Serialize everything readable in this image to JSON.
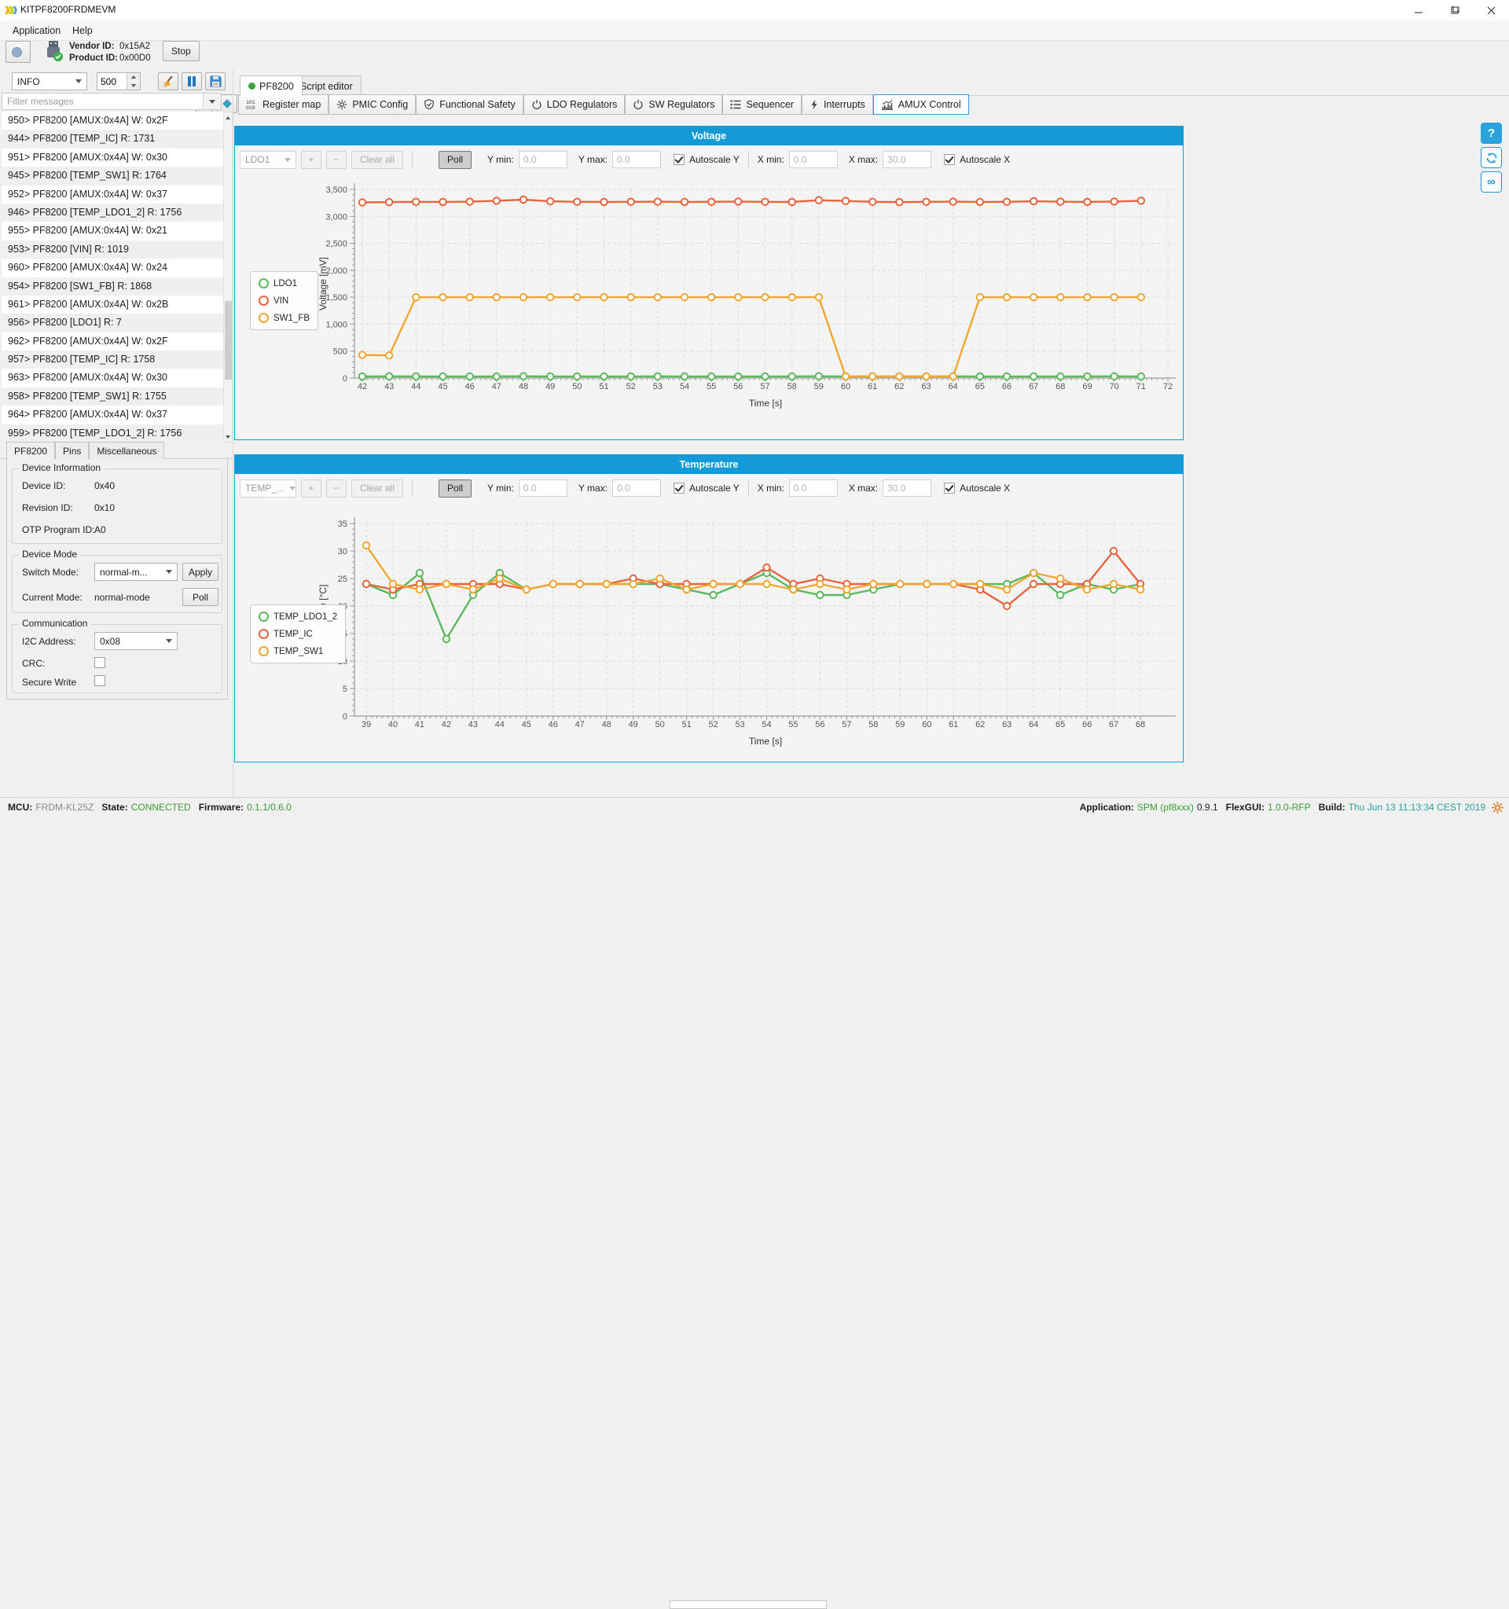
{
  "window": {
    "title": "KITPF8200FRDMEVM"
  },
  "menu": {
    "items": [
      "Application",
      "Help"
    ]
  },
  "toolbar": {
    "vendor_id_label": "Vendor ID:",
    "vendor_id_value": "0x15A2",
    "product_id_label": "Product ID:",
    "product_id_value": "0x00D0",
    "stop_label": "Stop",
    "log_level_value": "INFO",
    "log_buffer_value": "500"
  },
  "filter": {
    "placeholder": "Filter messages"
  },
  "log_rows": [
    "950>  PF8200 [AMUX:0x4A] W: 0x2F",
    "944>  PF8200 [TEMP_IC] R: 1731",
    "951>  PF8200 [AMUX:0x4A] W: 0x30",
    "945>  PF8200 [TEMP_SW1] R: 1764",
    "952>  PF8200 [AMUX:0x4A] W: 0x37",
    "946>  PF8200 [TEMP_LDO1_2] R: 1756",
    "955>  PF8200 [AMUX:0x4A] W: 0x21",
    "953>  PF8200 [VIN] R: 1019",
    "960>  PF8200 [AMUX:0x4A] W: 0x24",
    "954>  PF8200 [SW1_FB] R: 1868",
    "961>  PF8200 [AMUX:0x4A] W: 0x2B",
    "956>  PF8200 [LDO1] R: 7",
    "962>  PF8200 [AMUX:0x4A] W: 0x2F",
    "957>  PF8200 [TEMP_IC] R: 1758",
    "963>  PF8200 [AMUX:0x4A] W: 0x30",
    "958>  PF8200 [TEMP_SW1] R: 1755",
    "964>  PF8200 [AMUX:0x4A] W: 0x37",
    "959>  PF8200 [TEMP_LDO1_2] R: 1756"
  ],
  "main_tabs": [
    {
      "label": "PF8200",
      "selected": true
    },
    {
      "label": "Script editor",
      "selected": false
    }
  ],
  "sub_tabs": [
    {
      "label": "Register map",
      "icon": "register-map-icon",
      "selected": false
    },
    {
      "label": "PMIC Config",
      "icon": "gear-icon",
      "selected": false
    },
    {
      "label": "Functional Safety",
      "icon": "shield-icon",
      "selected": false
    },
    {
      "label": "LDO Regulators",
      "icon": "power-icon",
      "selected": false
    },
    {
      "label": "SW Regulators",
      "icon": "power-icon",
      "selected": false
    },
    {
      "label": "Sequencer",
      "icon": "list-icon",
      "selected": false
    },
    {
      "label": "Interrupts",
      "icon": "lightning-icon",
      "selected": false
    },
    {
      "label": "AMUX Control",
      "icon": "chart-icon",
      "selected": true
    }
  ],
  "left_tabs": [
    {
      "label": "PF8200",
      "selected": true
    },
    {
      "label": "Pins",
      "selected": false
    },
    {
      "label": "Miscellaneous",
      "selected": false
    }
  ],
  "device_panel": {
    "device_info_title": "Device Information",
    "device_info_rows": [
      {
        "label": "Device ID:",
        "value": "0x40"
      },
      {
        "label": "Revision ID:",
        "value": "0x10"
      },
      {
        "label": "OTP Program ID:",
        "value": "A0"
      }
    ],
    "device_mode_title": "Device Mode",
    "switch_mode_label": "Switch Mode:",
    "switch_mode_value": "normal-m...",
    "apply_label": "Apply",
    "current_mode_label": "Current Mode:",
    "current_mode_value": "normal-mode",
    "poll_label": "Poll",
    "communication_title": "Communication",
    "i2c_address_label": "I2C Address:",
    "i2c_address_value": "0x08",
    "crc_label": "CRC:",
    "secure_write_label": "Secure Write"
  },
  "chart_controls": {
    "voltage_series_select": "LDO1",
    "temperature_series_select": "TEMP_...",
    "plus_label": "+",
    "minus_label": "−",
    "clear_label": "Clear all",
    "poll_label": "Poll",
    "y_min_label": "Y min:",
    "y_min_value": "0.0",
    "y_max_label": "Y max:",
    "y_max_value": "0.0",
    "autoscale_y_label": "Autoscale Y",
    "x_min_label": "X min:",
    "x_min_value": "0.0",
    "x_max_label": "X max:",
    "x_max_value": "30.0",
    "autoscale_x_label": "Autoscale X"
  },
  "chart_data": [
    {
      "id": "voltage",
      "type": "line",
      "title": "Voltage",
      "xlabel": "Time [s]",
      "ylabel": "Voltage [mV]",
      "xlim": [
        42,
        72
      ],
      "ylim": [
        0,
        3500
      ],
      "y_major": 500,
      "comma_y_labels": true,
      "grid": true,
      "legend_position": "left",
      "x": [
        42,
        43,
        44,
        45,
        46,
        47,
        48,
        49,
        50,
        51,
        52,
        53,
        54,
        55,
        56,
        57,
        58,
        59,
        60,
        61,
        62,
        63,
        64,
        65,
        66,
        67,
        68,
        69,
        70,
        71
      ],
      "series": [
        {
          "name": "LDO1",
          "color": "#5cb85c",
          "values": [
            30,
            32,
            30,
            31,
            30,
            30,
            33,
            30,
            31,
            30,
            30,
            32,
            30,
            30,
            31,
            30,
            30,
            34,
            30,
            30,
            31,
            30,
            32,
            30,
            30,
            31,
            30,
            30,
            32,
            30
          ]
        },
        {
          "name": "VIN",
          "color": "#e8643f",
          "values": [
            3260,
            3265,
            3270,
            3268,
            3272,
            3290,
            3310,
            3280,
            3270,
            3268,
            3270,
            3272,
            3268,
            3270,
            3275,
            3270,
            3268,
            3300,
            3285,
            3270,
            3265,
            3270,
            3272,
            3268,
            3270,
            3280,
            3272,
            3268,
            3275,
            3290
          ]
        },
        {
          "name": "SW1_FB",
          "color": "#f0a630",
          "values": [
            430,
            420,
            1500,
            1500,
            1500,
            1500,
            1500,
            1500,
            1500,
            1500,
            1500,
            1500,
            1500,
            1500,
            1500,
            1500,
            1500,
            1500,
            30,
            30,
            30,
            30,
            30,
            1500,
            1500,
            1500,
            1500,
            1500,
            1500,
            1500
          ]
        }
      ]
    },
    {
      "id": "temperature",
      "type": "line",
      "title": "Temperature",
      "xlabel": "Time [s]",
      "ylabel": "Temperature [°C]",
      "xlim": [
        39,
        68
      ],
      "ylim": [
        0,
        35
      ],
      "y_major": 5,
      "comma_y_labels": false,
      "grid": true,
      "legend_position": "left",
      "x": [
        39,
        40,
        41,
        42,
        43,
        44,
        45,
        46,
        47,
        48,
        49,
        50,
        51,
        52,
        53,
        54,
        55,
        56,
        57,
        58,
        59,
        60,
        61,
        62,
        63,
        64,
        65,
        66,
        67,
        68
      ],
      "series": [
        {
          "name": "TEMP_LDO1_2",
          "color": "#5cb85c",
          "values": [
            24,
            22,
            26,
            14,
            22,
            26,
            23,
            24,
            24,
            24,
            24,
            24,
            23,
            22,
            24,
            26,
            23,
            22,
            22,
            23,
            24,
            24,
            24,
            24,
            24,
            26,
            22,
            24,
            23,
            24
          ]
        },
        {
          "name": "TEMP_IC",
          "color": "#e8643f",
          "values": [
            24,
            23,
            24,
            24,
            24,
            24,
            23,
            24,
            24,
            24,
            25,
            24,
            24,
            24,
            24,
            27,
            24,
            25,
            24,
            24,
            24,
            24,
            24,
            23,
            20,
            24,
            24,
            24,
            30,
            24
          ]
        },
        {
          "name": "TEMP_SW1",
          "color": "#f0a630",
          "values": [
            31,
            24,
            23,
            24,
            23,
            25,
            23,
            24,
            24,
            24,
            24,
            25,
            23,
            24,
            24,
            24,
            23,
            24,
            23,
            24,
            24,
            24,
            24,
            24,
            23,
            26,
            25,
            23,
            24,
            23
          ]
        }
      ]
    }
  ],
  "status_bar": {
    "left": [
      {
        "label": "MCU:",
        "value": "FRDM-KL25Z",
        "style": "muted"
      },
      {
        "label": "State:",
        "value": "CONNECTED",
        "style": "green"
      },
      {
        "label": "Firmware:",
        "value": "0.1.1/0.6.0",
        "style": "green"
      }
    ],
    "right": [
      {
        "label": "Application:",
        "value": "SPM (pf8xxx)",
        "style": "green"
      },
      {
        "label": "",
        "value": "0.9.1",
        "style": "plain"
      },
      {
        "label": "FlexGUI:",
        "value": "1.0.0-RFP",
        "style": "green"
      },
      {
        "label": "Build:",
        "value": "Thu Jun 13 11:13:34 CEST 2019",
        "style": "teal"
      }
    ]
  },
  "colors": {
    "accent": "#149ad6",
    "connected_green": "#3d9b35",
    "build_teal": "#2aa198",
    "series_green": "#5cb85c",
    "series_red": "#e8643f",
    "series_orange": "#f0a630"
  }
}
